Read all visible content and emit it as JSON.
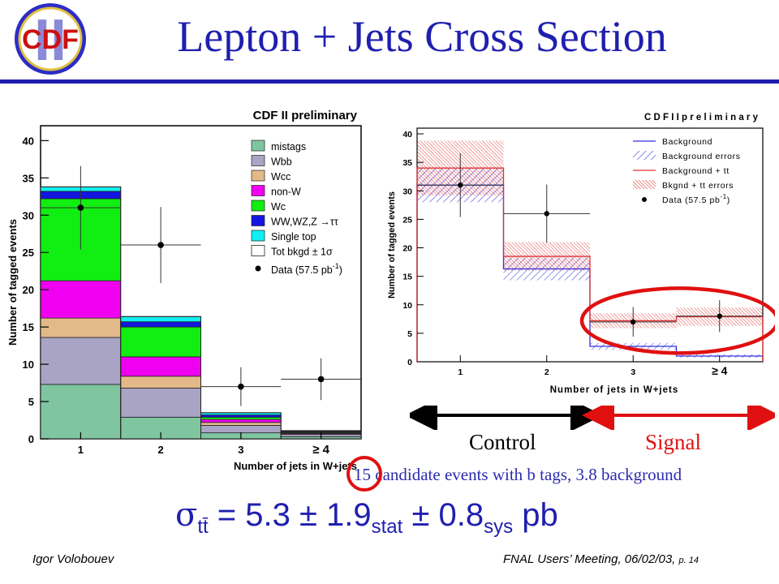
{
  "slide": {
    "title": "Lepton + Jets Cross Section",
    "logo_text": "CDF",
    "logo_numeral": "II",
    "control_label": "Control",
    "signal_label": "Signal",
    "candidate_text": "15 candidate events with b tags, 3.8 background",
    "formula": {
      "sigma": "σ",
      "sub": "tt̄",
      "eq": " = 5.3 ± 1.9",
      "stat": "stat",
      "pm": " ± 0.8",
      "sys": "sys",
      "unit": " pb"
    },
    "footer_left": "Igor Volobouev",
    "footer_right": "FNAL Users’ Meeting, 06/02/03,",
    "footer_page": "p. 14",
    "colors": {
      "title_blue": "#1f1fb0",
      "signal_red": "#e01010"
    }
  },
  "chart_data": [
    {
      "type": "bar",
      "stacked": true,
      "title": "CDF II preliminary",
      "xlabel": "Number of jets in W+jets",
      "ylabel": "Number of tagged events",
      "categories": [
        "1",
        "2",
        "3",
        "≥ 4"
      ],
      "ylim": [
        0,
        42
      ],
      "yticks": [
        0,
        5,
        10,
        15,
        20,
        25,
        30,
        35,
        40
      ],
      "series": [
        {
          "name": "mistags",
          "color": "#7fc5a0",
          "values": [
            7.3,
            2.9,
            0.8,
            0.3
          ]
        },
        {
          "name": "Wbb",
          "color": "#a9a3c4",
          "values": [
            6.3,
            3.9,
            1.0,
            0.3
          ]
        },
        {
          "name": "Wcc",
          "color": "#e3b989",
          "values": [
            2.6,
            1.6,
            0.4,
            0.1
          ]
        },
        {
          "name": "non-W",
          "color": "#f000f0",
          "values": [
            5.0,
            2.6,
            0.4,
            0.1
          ]
        },
        {
          "name": "Wc",
          "color": "#11ee11",
          "values": [
            11.0,
            4.0,
            0.3,
            0.1
          ]
        },
        {
          "name": "WW,WZ,Z →ττ",
          "color": "#1515e0",
          "values": [
            1.0,
            0.7,
            0.3,
            0.1
          ]
        },
        {
          "name": "Single top",
          "color": "#11f0f0",
          "values": [
            0.6,
            0.7,
            0.3,
            0.1
          ]
        }
      ],
      "totals": [
        33.8,
        16.4,
        3.5,
        1.1
      ],
      "total_label": "Tot bkgd ± 1σ",
      "data": {
        "name": "Data (57.5 pb",
        "name_sup": "-1",
        "name_end": ")",
        "values": [
          31,
          26,
          7,
          8
        ],
        "errors": [
          5.6,
          5.1,
          2.6,
          2.8
        ]
      },
      "legend_position": "top-right"
    },
    {
      "type": "bar",
      "title": "C D F  I I  p r e l i m  i n a r y",
      "xlabel": "Number of jets in W+jets",
      "ylabel": "Number of tagged events",
      "categories": [
        "1",
        "2",
        "3",
        "≥ 4"
      ],
      "ylim": [
        0,
        41
      ],
      "yticks": [
        0,
        5,
        10,
        15,
        20,
        25,
        30,
        35,
        40
      ],
      "series": [
        {
          "name": "Background",
          "color": "#3030e0",
          "values": [
            31.0,
            16.3,
            2.7,
            1.0
          ],
          "errors": [
            3.0,
            2.0,
            0.6,
            0.3
          ]
        },
        {
          "name": "Background + tt",
          "color": "#e03030",
          "values": [
            34.0,
            18.5,
            7.2,
            7.9
          ],
          "errors": [
            4.8,
            2.5,
            1.3,
            1.6
          ]
        }
      ],
      "legend": [
        "Background",
        "Background errors",
        "Background + tt",
        "Bkgnd + tt errors",
        "Data (57.5 pb"
      ],
      "legend_sup": "-1",
      "legend_end": ")",
      "data": {
        "values": [
          31,
          26,
          7,
          8
        ],
        "errors": [
          5.6,
          5.1,
          2.6,
          2.8
        ]
      },
      "legend_position": "top-right"
    }
  ]
}
